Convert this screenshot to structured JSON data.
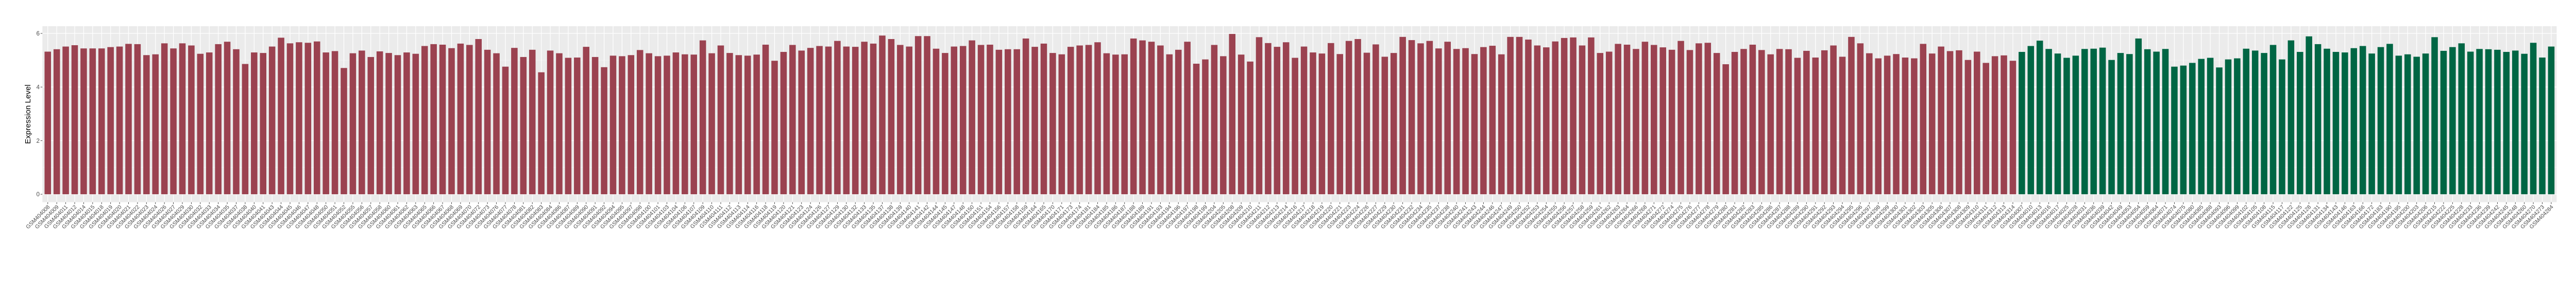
{
  "chart_data": {
    "type": "bar",
    "title": "",
    "xlabel": "",
    "ylabel": "Expression Level",
    "ylim": [
      0,
      6.28
    ],
    "yticks": [
      "0",
      "2",
      "4",
      "6"
    ],
    "grid": true,
    "legend": "none",
    "groups": [
      {
        "color": "#9B4250",
        "categories": [
          "GSM404008",
          "GSM404009",
          "GSM404011",
          "GSM404012",
          "GSM404014",
          "GSM404015",
          "GSM404018",
          "GSM404019",
          "GSM404020",
          "GSM404021",
          "GSM404022",
          "GSM404023",
          "GSM404024",
          "GSM404026",
          "GSM404027",
          "GSM404029",
          "GSM404030",
          "GSM404032",
          "GSM404033",
          "GSM404034",
          "GSM404035",
          "GSM404037",
          "GSM404038",
          "GSM404040",
          "GSM404041",
          "GSM404043",
          "GSM404044",
          "GSM404045",
          "GSM404046",
          "GSM404047",
          "GSM404048",
          "GSM404050",
          "GSM404051",
          "GSM404052",
          "GSM404055",
          "GSM404056",
          "GSM404057",
          "GSM404058",
          "GSM404060",
          "GSM404061",
          "GSM404062",
          "GSM404063",
          "GSM404065",
          "GSM404066",
          "GSM404067",
          "GSM404068",
          "GSM404069",
          "GSM404070",
          "GSM404072",
          "GSM404073",
          "GSM404076",
          "GSM404077",
          "GSM404078",
          "GSM404081",
          "GSM404082",
          "GSM404083",
          "GSM404084",
          "GSM404086",
          "GSM404087",
          "GSM404089",
          "GSM404090",
          "GSM404091",
          "GSM404092",
          "GSM404094",
          "GSM404095",
          "GSM404097",
          "GSM404098",
          "GSM404100",
          "GSM404101",
          "GSM404103",
          "GSM404104",
          "GSM404106",
          "GSM404107",
          "GSM404109",
          "GSM404110",
          "GSM404111",
          "GSM404112",
          "GSM404113",
          "GSM404114",
          "GSM404116",
          "GSM404118",
          "GSM404119",
          "GSM404120",
          "GSM404121",
          "GSM404123",
          "GSM404124",
          "GSM404126",
          "GSM404127",
          "GSM404129",
          "GSM404130",
          "GSM404132",
          "GSM404133",
          "GSM404135",
          "GSM404137",
          "GSM404138",
          "GSM404139",
          "GSM404140",
          "GSM404141",
          "GSM404142",
          "GSM404144",
          "GSM404145",
          "GSM404147",
          "GSM404148",
          "GSM404150",
          "GSM404151",
          "GSM404154",
          "GSM404156",
          "GSM404157",
          "GSM404158",
          "GSM404159",
          "GSM404164",
          "GSM404165",
          "GSM404170",
          "GSM404171",
          "GSM404173",
          "GSM404174",
          "GSM404181",
          "GSM404184",
          "GSM404185",
          "GSM404186",
          "GSM404187",
          "GSM404188",
          "GSM404189",
          "GSM404191",
          "GSM404193",
          "GSM404194",
          "GSM404196",
          "GSM404197",
          "GSM404198",
          "GSM404199",
          "GSM404204",
          "GSM404205",
          "GSM404208",
          "GSM404209",
          "GSM404210",
          "GSM404211",
          "GSM404212",
          "GSM404213",
          "GSM404214",
          "GSM404216",
          "GSM404217",
          "GSM404218",
          "GSM404219",
          "GSM404220",
          "GSM404221",
          "GSM404223",
          "GSM404224",
          "GSM404226",
          "GSM404227",
          "GSM404229",
          "GSM404230",
          "GSM404231",
          "GSM404232",
          "GSM404234",
          "GSM404235",
          "GSM404237",
          "GSM404238",
          "GSM404240",
          "GSM404241",
          "GSM404243",
          "GSM404244",
          "GSM404246",
          "GSM404247",
          "GSM404249",
          "GSM404250",
          "GSM404252",
          "GSM404253",
          "GSM404254",
          "GSM404255",
          "GSM404256",
          "GSM404257",
          "GSM404258",
          "GSM404259",
          "GSM404261",
          "GSM404262",
          "GSM404263",
          "GSM404264",
          "GSM404266",
          "GSM404268",
          "GSM404271",
          "GSM404272",
          "GSM404274",
          "GSM404275",
          "GSM404276",
          "GSM404277",
          "GSM404278",
          "GSM404279",
          "GSM404280",
          "GSM404281",
          "GSM404282",
          "GSM404283",
          "GSM404285",
          "GSM404286",
          "GSM404287",
          "GSM404288",
          "GSM404289",
          "GSM404290",
          "GSM404291",
          "GSM404292",
          "GSM404293",
          "GSM404294",
          "GSM404295",
          "GSM404296",
          "GSM404297",
          "GSM404298",
          "GSM404299",
          "GSM404300",
          "GSM404301",
          "GSM404302",
          "GSM404303",
          "GSM404305",
          "GSM404306",
          "GSM404307",
          "GSM404308",
          "GSM404309",
          "GSM404310",
          "GSM404311",
          "GSM404312",
          "GSM404313",
          "GSM404314"
        ],
        "values": [
          5.32,
          5.41,
          5.51,
          5.56,
          5.44,
          5.44,
          5.44,
          5.49,
          5.51,
          5.61,
          5.6,
          5.19,
          5.22,
          5.63,
          5.44,
          5.63,
          5.55,
          5.24,
          5.29,
          5.6,
          5.69,
          5.41,
          4.86,
          5.29,
          5.27,
          5.51,
          5.84,
          5.63,
          5.67,
          5.65,
          5.7,
          5.29,
          5.34,
          4.71,
          5.26,
          5.36,
          5.12,
          5.33,
          5.27,
          5.19,
          5.29,
          5.24,
          5.53,
          5.6,
          5.58,
          5.45,
          5.62,
          5.57,
          5.79,
          5.39,
          5.26,
          4.76,
          5.46,
          5.12,
          5.39,
          4.55,
          5.36,
          5.26,
          5.09,
          5.1,
          5.5,
          5.12,
          4.74,
          5.17,
          5.15,
          5.19,
          5.38,
          5.26,
          5.15,
          5.17,
          5.29,
          5.22,
          5.21,
          5.74,
          5.26,
          5.55,
          5.27,
          5.19,
          5.17,
          5.21,
          5.58,
          4.98,
          5.31,
          5.57,
          5.36,
          5.46,
          5.53,
          5.51,
          5.72,
          5.51,
          5.5,
          5.69,
          5.62,
          5.92,
          5.79,
          5.57,
          5.51,
          5.9,
          5.9,
          5.43,
          5.27,
          5.51,
          5.53,
          5.74,
          5.57,
          5.58,
          5.39,
          5.41,
          5.41,
          5.81,
          5.5,
          5.62,
          5.27,
          5.22,
          5.5,
          5.55,
          5.57,
          5.67,
          5.26,
          5.21,
          5.22,
          5.81,
          5.74,
          5.69,
          5.55,
          5.22,
          5.39,
          5.69,
          4.87,
          5.03,
          5.57,
          5.15,
          5.98,
          5.21,
          4.95,
          5.86,
          5.64,
          5.5,
          5.67,
          5.09,
          5.51,
          5.29,
          5.25,
          5.64,
          5.23,
          5.72,
          5.79,
          5.28,
          5.59,
          5.13,
          5.27,
          5.87,
          5.75,
          5.63,
          5.72,
          5.44,
          5.69,
          5.42,
          5.45,
          5.23,
          5.49,
          5.54,
          5.22,
          5.87,
          5.87,
          5.77,
          5.55,
          5.48,
          5.7,
          5.83,
          5.85,
          5.55,
          5.85,
          5.27,
          5.32,
          5.61,
          5.58,
          5.42,
          5.69,
          5.57,
          5.48,
          5.39,
          5.72,
          5.38,
          5.63,
          5.65,
          5.27,
          4.85,
          5.31,
          5.42,
          5.58,
          5.38,
          5.22,
          5.42,
          5.41,
          5.09,
          5.35,
          5.1,
          5.37,
          5.55,
          5.13,
          5.87,
          5.63,
          5.26,
          5.07,
          5.17,
          5.23,
          5.1,
          5.07,
          5.61,
          5.25,
          5.51,
          5.34,
          5.37,
          5.01,
          5.32,
          4.9,
          5.15,
          5.18,
          4.98
        ]
      },
      {
        "color": "#006644",
        "categories": [
          "GSM404007",
          "GSM404010",
          "GSM404013",
          "GSM404016",
          "GSM404017",
          "GSM404025",
          "GSM404028",
          "GSM404031",
          "GSM404036",
          "GSM404039",
          "GSM404042",
          "GSM404049",
          "GSM404053",
          "GSM404054",
          "GSM404059",
          "GSM404064",
          "GSM404071",
          "GSM404074",
          "GSM404075",
          "GSM404080",
          "GSM404085",
          "GSM404088",
          "GSM404093",
          "GSM404096",
          "GSM404099",
          "GSM404102",
          "GSM404105",
          "GSM404108",
          "GSM404115",
          "GSM404117",
          "GSM404122",
          "GSM404125",
          "GSM404128",
          "GSM404131",
          "GSM404134",
          "GSM404143",
          "GSM404146",
          "GSM404163",
          "GSM404166",
          "GSM404172",
          "GSM404183",
          "GSM404190",
          "GSM404195",
          "GSM404200",
          "GSM404203",
          "GSM404206",
          "GSM404215",
          "GSM404222",
          "GSM404225",
          "GSM404228",
          "GSM404233",
          "GSM404236",
          "GSM404239",
          "GSM404242",
          "GSM404245",
          "GSM404248",
          "GSM404260",
          "GSM404270",
          "GSM404273",
          "GSM404284"
        ],
        "values": [
          5.31,
          5.53,
          5.73,
          5.42,
          5.25,
          5.09,
          5.17,
          5.42,
          5.43,
          5.47,
          5.01,
          5.27,
          5.23,
          5.81,
          5.41,
          5.32,
          5.42,
          4.76,
          4.8,
          4.9,
          5.05,
          5.09,
          4.73,
          5.03,
          5.07,
          5.43,
          5.36,
          5.27,
          5.57,
          5.03,
          5.74,
          5.31,
          5.89,
          5.6,
          5.43,
          5.31,
          5.29,
          5.45,
          5.53,
          5.25,
          5.49,
          5.61,
          5.17,
          5.22,
          5.13,
          5.25,
          5.86,
          5.35,
          5.49,
          5.63,
          5.32,
          5.42,
          5.41,
          5.39,
          5.31,
          5.36,
          5.24,
          5.65,
          5.1,
          5.51
        ]
      }
    ]
  }
}
